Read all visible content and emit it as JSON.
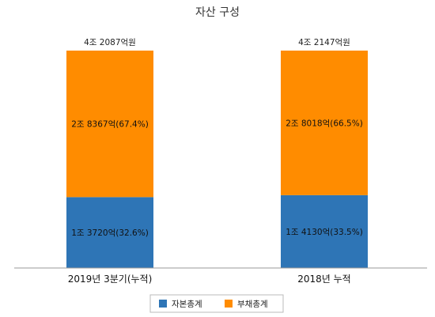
{
  "chart_data": {
    "type": "bar",
    "stacked": true,
    "title": "자산 구성",
    "categories": [
      "2019년 3분기(누적)",
      "2018년 누적"
    ],
    "totals": [
      "4조 2087억원",
      "4조 2147억원"
    ],
    "series": [
      {
        "name": "자본총계",
        "color": "#2e75b6",
        "values": [
          32.6,
          33.5
        ],
        "labels": [
          "1조 3720억(32.6%)",
          "1조 4130억(33.5%)"
        ]
      },
      {
        "name": "부채총계",
        "color": "#ff8c00",
        "values": [
          67.4,
          66.5
        ],
        "labels": [
          "2조 8367억(67.4%)",
          "2조 8018억(66.5%)"
        ]
      }
    ],
    "ylim": [
      0,
      100
    ],
    "grid": false,
    "legend_position": "bottom"
  }
}
